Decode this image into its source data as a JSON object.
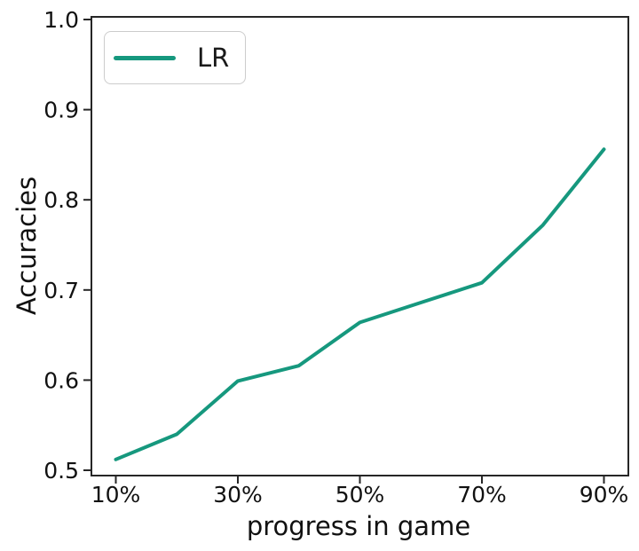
{
  "figure": {
    "background": "#ffffff"
  },
  "chart_data": {
    "type": "line",
    "title": "",
    "xlabel": "progress in game",
    "ylabel": "Accuracies",
    "x_ticks": [
      10,
      30,
      50,
      70,
      90
    ],
    "x_tick_labels": [
      "10%",
      "30%",
      "50%",
      "70%",
      "90%"
    ],
    "y_ticks": [
      0.5,
      0.6,
      0.7,
      0.8,
      0.9,
      1.0
    ],
    "y_tick_labels": [
      "0.5",
      "0.6",
      "0.7",
      "0.8",
      "0.9",
      "1.0"
    ],
    "xlim": [
      6,
      94
    ],
    "ylim": [
      0.5,
      1.0
    ],
    "grid": false,
    "axis_color": "#262626",
    "tick_label_color": "#111111",
    "legend": {
      "position": "upper-left",
      "entries": [
        {
          "label": "LR",
          "color": "#16987e"
        }
      ]
    },
    "series": [
      {
        "name": "LR",
        "color": "#16987e",
        "line_width": 4,
        "x": [
          10,
          20,
          30,
          40,
          50,
          60,
          70,
          80,
          90
        ],
        "values": [
          0.512,
          0.54,
          0.599,
          0.616,
          0.664,
          0.686,
          0.708,
          0.772,
          0.856
        ]
      }
    ]
  }
}
